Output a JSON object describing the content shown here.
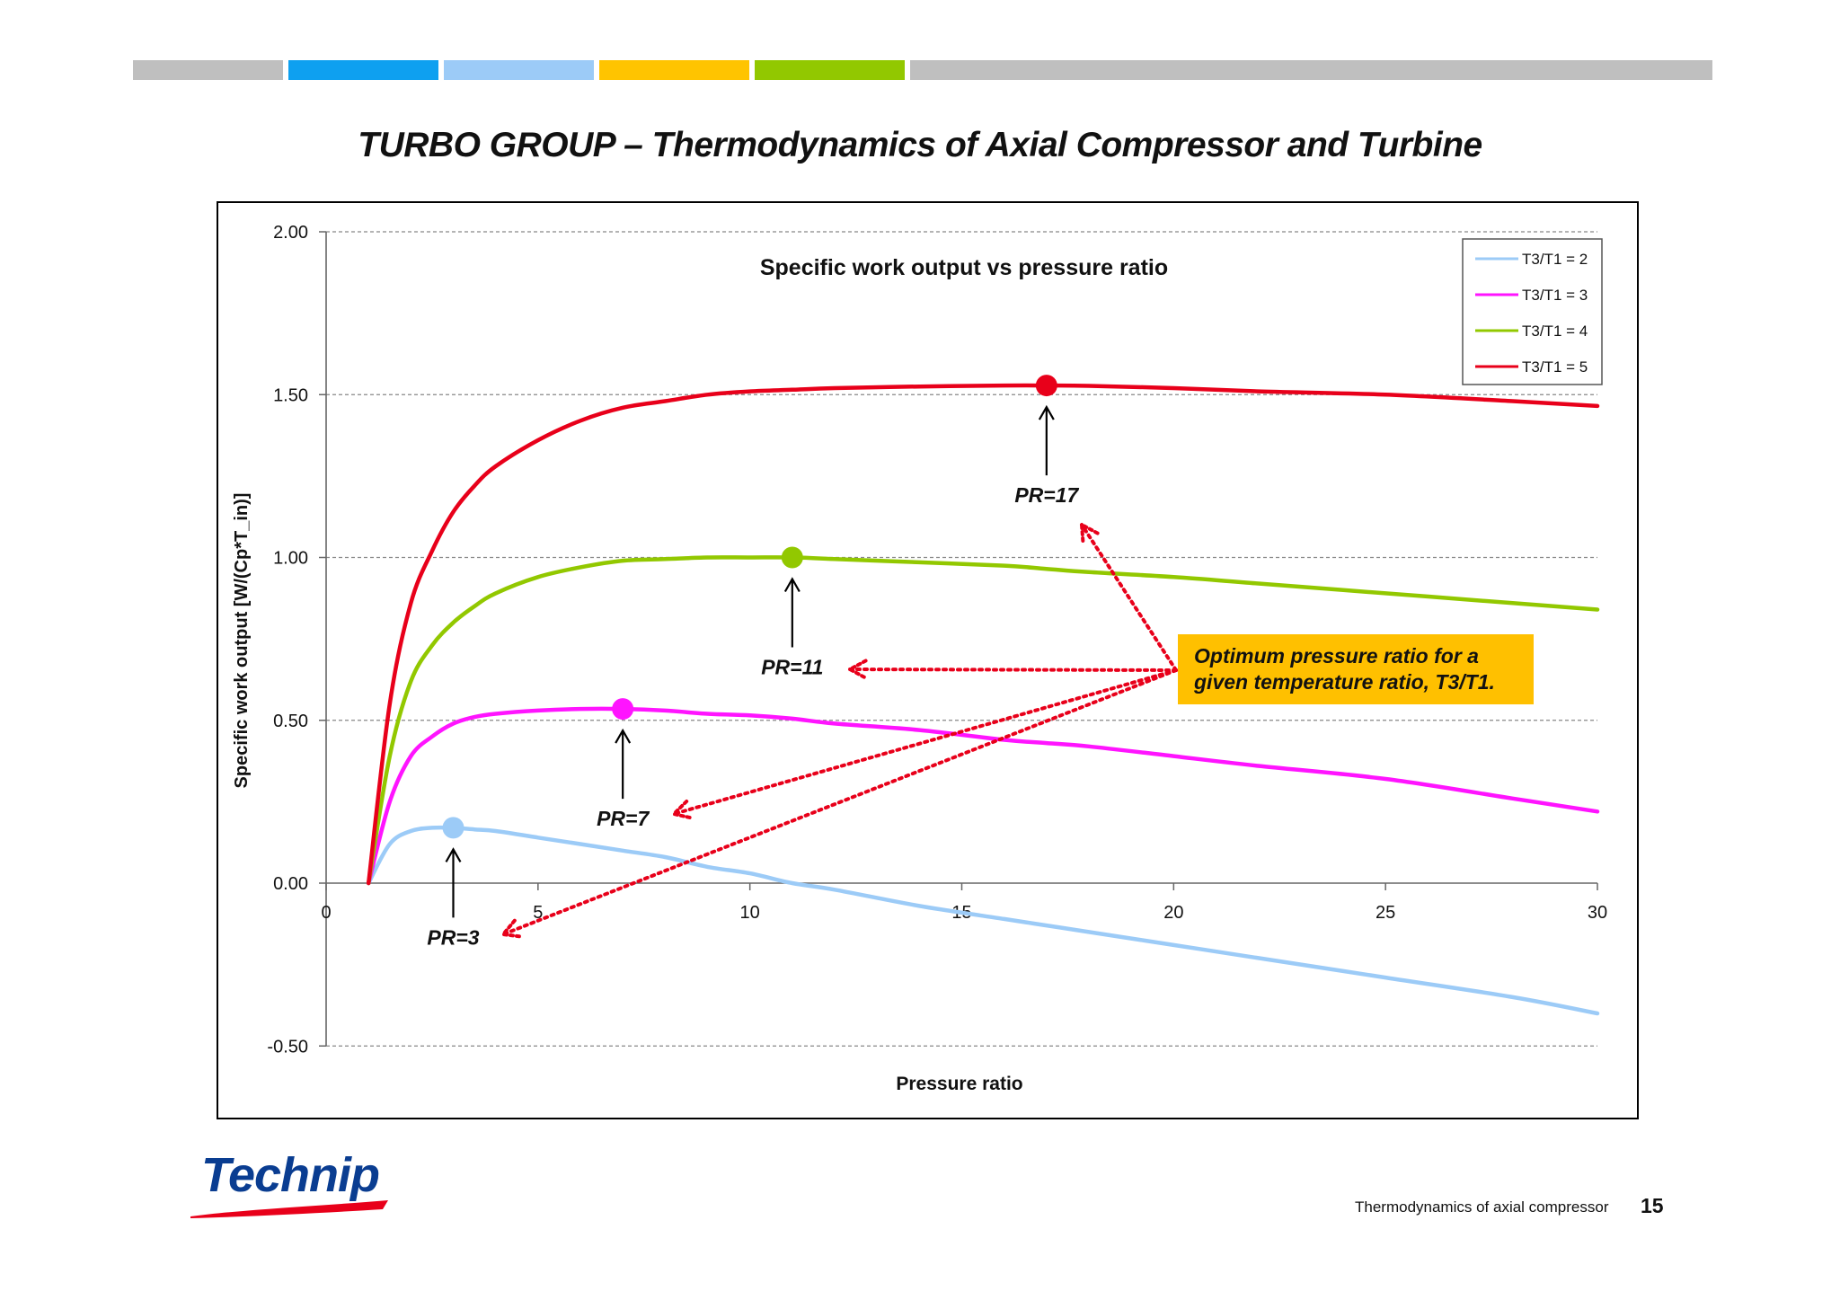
{
  "slide": {
    "title": "TURBO GROUP – Thermodynamics of Axial Compressor and Turbine",
    "footer": "Thermodynamics of  axial compressor",
    "page_number": "15",
    "logo_text": "Technip",
    "top_bar_colors": [
      "#bfbfbf",
      "#0ea0f0",
      "#9ccbf7",
      "#ffc400",
      "#92c800",
      "#bfbfbf"
    ]
  },
  "chart_data": {
    "type": "line",
    "title": "Specific work output vs pressure ratio",
    "xlabel": "Pressure ratio",
    "ylabel": "Specific work output [W/(Cp*T_in)]",
    "xlim": [
      0,
      30
    ],
    "ylim": [
      -0.5,
      2.0
    ],
    "x_ticks": [
      0,
      5,
      10,
      15,
      20,
      25,
      30
    ],
    "x_tick_labels": [
      "0",
      "5",
      "10",
      "15",
      "20",
      "25",
      "30"
    ],
    "y_ticks": [
      -0.5,
      0,
      0.5,
      1.0,
      1.5,
      2.0
    ],
    "y_tick_labels": [
      "-0.50",
      "0.00",
      "0.50",
      "1.00",
      "1.50",
      "2.00"
    ],
    "grid": "horizontal dashed",
    "legend_position": "top-right",
    "x": [
      1,
      1.5,
      2,
      2.5,
      3,
      3.5,
      4,
      5,
      6,
      7,
      8,
      9,
      10,
      11,
      12,
      14,
      16,
      17,
      18,
      20,
      22,
      25,
      28,
      30
    ],
    "series": [
      {
        "name": "T3/T1 = 2",
        "color": "#9ccbf7",
        "values": [
          0,
          0.12,
          0.16,
          0.17,
          0.17,
          0.165,
          0.16,
          0.14,
          0.12,
          0.1,
          0.08,
          0.05,
          0.03,
          0.0,
          -0.02,
          -0.07,
          -0.11,
          -0.13,
          -0.15,
          -0.19,
          -0.23,
          -0.29,
          -0.35,
          -0.4
        ]
      },
      {
        "name": "T3/T1 = 3",
        "color": "#ff14ff",
        "values": [
          0,
          0.25,
          0.39,
          0.45,
          0.49,
          0.51,
          0.52,
          0.53,
          0.535,
          0.535,
          0.53,
          0.52,
          0.515,
          0.505,
          0.49,
          0.47,
          0.44,
          0.43,
          0.42,
          0.39,
          0.36,
          0.32,
          0.26,
          0.22
        ]
      },
      {
        "name": "T3/T1 = 4",
        "color": "#92c800",
        "values": [
          0,
          0.39,
          0.62,
          0.73,
          0.8,
          0.85,
          0.89,
          0.94,
          0.97,
          0.99,
          0.995,
          1.0,
          1.0,
          1.0,
          0.995,
          0.985,
          0.975,
          0.965,
          0.955,
          0.94,
          0.92,
          0.89,
          0.86,
          0.84
        ]
      },
      {
        "name": "T3/T1 = 5",
        "color": "#e8001a",
        "values": [
          0,
          0.55,
          0.86,
          1.02,
          1.14,
          1.22,
          1.28,
          1.36,
          1.42,
          1.46,
          1.48,
          1.5,
          1.51,
          1.515,
          1.52,
          1.525,
          1.528,
          1.528,
          1.527,
          1.52,
          1.51,
          1.5,
          1.48,
          1.465
        ]
      }
    ],
    "optima": [
      {
        "x": 3,
        "y": 0.17,
        "color": "#9ccbf7",
        "label": "PR=3"
      },
      {
        "x": 7,
        "y": 0.535,
        "color": "#ff14ff",
        "label": "PR=7"
      },
      {
        "x": 11,
        "y": 1.0,
        "color": "#92c800",
        "label": "PR=11"
      },
      {
        "x": 17,
        "y": 1.528,
        "color": "#e8001a",
        "label": "PR=17"
      }
    ],
    "annotation": {
      "lines": [
        "Optimum pressure ratio for a",
        "given temperature ratio, T3/T1."
      ],
      "background": "#ffc000",
      "arrow_color": "#e8001a"
    }
  }
}
